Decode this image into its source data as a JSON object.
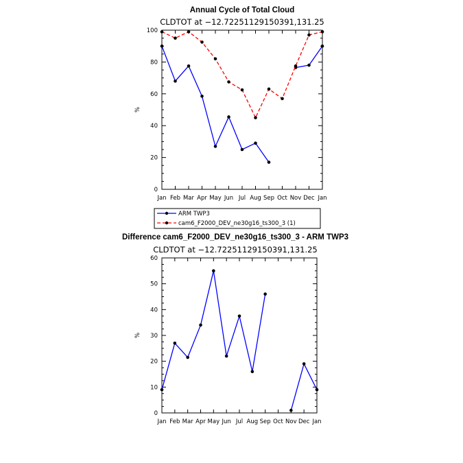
{
  "chart_data": [
    {
      "type": "line",
      "title": "Annual Cycle of Total Cloud",
      "subtitle": "CLDTOT at −12.72251129150391,131.25",
      "xlabel": "",
      "ylabel": "%",
      "categories": [
        "Jan",
        "Feb",
        "Mar",
        "Apr",
        "May",
        "Jun",
        "Jul",
        "Aug",
        "Sep",
        "Oct",
        "Nov",
        "Dec",
        "Jan"
      ],
      "ylim": [
        0,
        100
      ],
      "yticks": [
        0,
        20,
        40,
        60,
        80,
        100
      ],
      "grid": false,
      "legend_position": "bottom",
      "series": [
        {
          "name": "ARM TWP3",
          "color": "#0000ff",
          "dash": "solid",
          "values": [
            90,
            68,
            77.5,
            58.5,
            27,
            45.5,
            25,
            29,
            17,
            null,
            76.5,
            78,
            90
          ]
        },
        {
          "name": "cam6_F2000_DEV_ne30g16_ts300_3 (1)",
          "color": "#ff0000",
          "dash": "dashed",
          "values": [
            99,
            95,
            99,
            92.5,
            82,
            67.5,
            62.5,
            45,
            63,
            57,
            77.5,
            97,
            99
          ]
        }
      ]
    },
    {
      "type": "line",
      "title": "Difference cam6_F2000_DEV_ne30g16_ts300_3 - ARM TWP3",
      "subtitle": "CLDTOT at −12.72251129150391,131.25",
      "xlabel": "",
      "ylabel": "%",
      "categories": [
        "Jan",
        "Feb",
        "Mar",
        "Apr",
        "May",
        "Jun",
        "Jul",
        "Aug",
        "Sep",
        "Oct",
        "Nov",
        "Dec",
        "Jan"
      ],
      "ylim": [
        0,
        60
      ],
      "yticks": [
        0,
        10,
        20,
        30,
        40,
        50,
        60
      ],
      "grid": false,
      "series": [
        {
          "color": "#0000ff",
          "dash": "solid",
          "values": [
            9,
            27,
            21.5,
            34,
            55,
            22,
            37.5,
            16,
            46,
            null,
            1,
            19,
            9
          ]
        }
      ]
    }
  ]
}
